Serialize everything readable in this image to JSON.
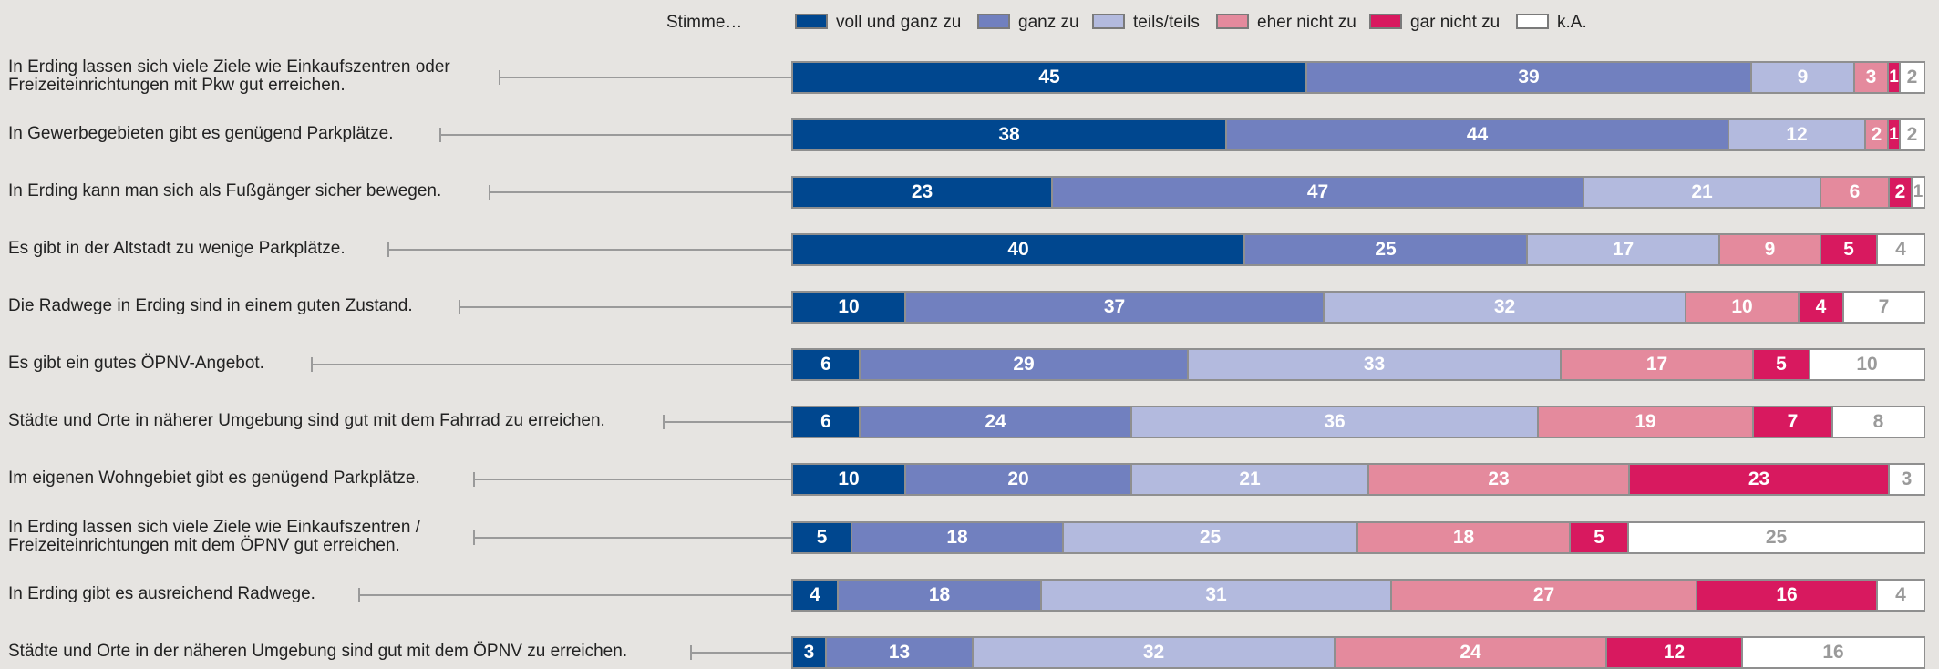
{
  "chart_data": {
    "type": "bar",
    "orientation": "horizontal",
    "stacked": true,
    "legend_prefix": "Stimme…",
    "legend_placement": "top",
    "series": [
      {
        "name": "voll und ganz zu",
        "color": "#00478f",
        "text_color": "#ffffff",
        "values": [
          45,
          38,
          23,
          40,
          10,
          6,
          6,
          10,
          5,
          4,
          3
        ]
      },
      {
        "name": "ganz zu",
        "color": "#7180bf",
        "text_color": "#ffffff",
        "values": [
          39,
          44,
          47,
          25,
          37,
          29,
          24,
          20,
          18,
          18,
          13
        ]
      },
      {
        "name": "teils/teils",
        "color": "#b3bade",
        "text_color": "#ffffff",
        "values": [
          9,
          12,
          21,
          17,
          32,
          33,
          36,
          21,
          25,
          31,
          32
        ]
      },
      {
        "name": "eher nicht zu",
        "color": "#e48a9d",
        "text_color": "#ffffff",
        "values": [
          3,
          2,
          6,
          9,
          10,
          17,
          19,
          23,
          18,
          27,
          24
        ]
      },
      {
        "name": "gar nicht zu",
        "color": "#d8195f",
        "text_color": "#ffffff",
        "values": [
          1,
          1,
          2,
          5,
          4,
          5,
          7,
          23,
          5,
          16,
          12
        ]
      },
      {
        "name": "k.A.",
        "color": "#ffffff",
        "text_color": "#9a9a9a",
        "values": [
          2,
          2,
          1,
          4,
          7,
          10,
          8,
          3,
          25,
          4,
          16
        ]
      }
    ],
    "categories": [
      "In Erding lassen sich viele Ziele wie Einkaufszentren oder\nFreizeiteinrichtungen mit Pkw gut erreichen.",
      "In Gewerbegebieten gibt es genügend Parkplätze.",
      "In Erding kann man sich als Fußgänger sicher bewegen.",
      "Es gibt in der Altstadt zu wenige Parkplätze.",
      "Die Radwege in Erding sind in einem guten Zustand.",
      "Es gibt ein gutes ÖPNV-Angebot.",
      "Städte und Orte in näherer Umgebung sind gut mit dem Fahrrad zu erreichen.",
      "Im eigenen Wohngebiet gibt es genügend Parkplätze.",
      "In Erding lassen sich viele Ziele wie Einkaufszentren /\nFreizeiteinrichtungen mit dem ÖPNV gut erreichen.",
      "In Erding gibt es ausreichend Radwege.",
      "Städte und Orte in der näheren Umgebung sind gut mit dem ÖPNV zu erreichen."
    ],
    "xlim": [
      0,
      100
    ],
    "grid": false
  }
}
